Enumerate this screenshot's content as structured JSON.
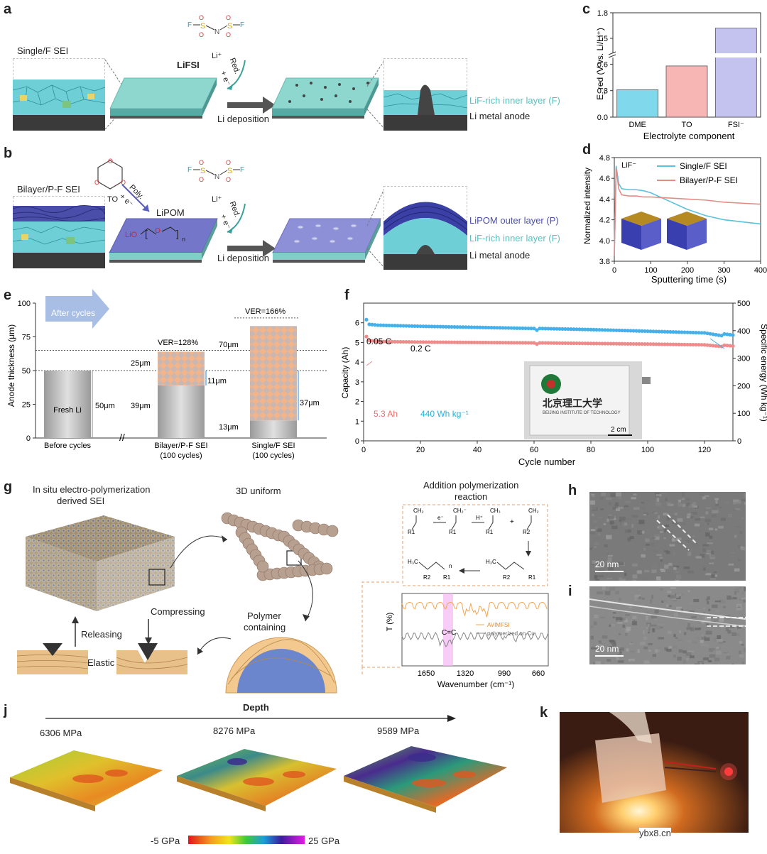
{
  "panel_letters": {
    "a": "a",
    "b": "b",
    "c": "c",
    "d": "d",
    "e": "e",
    "f": "f",
    "g": "g",
    "h": "h",
    "i": "i",
    "j": "j",
    "k": "k"
  },
  "panel_a": {
    "single_f_sei": "Single/F SEI",
    "lifsi": "LiFSI",
    "red": "Red.",
    "e_minus": "+ e⁻",
    "li_plus": "Li⁺",
    "li_deposition": "Li deposition",
    "lif_inner": "LiF-rich inner layer (F)",
    "li_metal": "Li metal anode"
  },
  "panel_b": {
    "bilayer": "Bilayer/P-F SEI",
    "to": "TO",
    "poly": "Poly.",
    "e_minus": "+ e⁻",
    "lipom": "LiPOM",
    "red": "Red.",
    "li_plus": "Li⁺",
    "li_deposition": "Li deposition",
    "lipom_outer": "LiPOM outer layer (P)",
    "lif_inner": "LiF-rich inner layer (F)",
    "li_metal": "Li metal anode"
  },
  "panel_c": {
    "ylabel": "E_red (V vs. Li/Li⁺)",
    "xlabel": "Electrolyte component",
    "yticks": [
      "0.0",
      "0.3",
      "0.6",
      "1.5",
      "1.8"
    ]
  },
  "panel_d": {
    "ylabel": "Normalized intensity",
    "xlabel": "Sputtering time (s)",
    "annot": "LiF⁻",
    "yticks": [
      "3.8",
      "4.0",
      "4.2",
      "4.4",
      "4.6",
      "4.8"
    ],
    "xticks": [
      "0",
      "100",
      "200",
      "300",
      "400"
    ]
  },
  "panel_e": {
    "ylabel": "Anode thickness (μm)",
    "after_cycles": "After cycles",
    "yticks": [
      "0",
      "25",
      "50",
      "75",
      "100"
    ],
    "fresh_li": "Fresh Li",
    "um50": "50μm",
    "ver128": "VER=128%",
    "um25": "25μm",
    "um11": "11μm",
    "um39": "39μm",
    "ver166": "VER=166%",
    "um70": "70μm",
    "um37": "37μm",
    "um13": "13μm",
    "cat1": "Before cycles",
    "cat2a": "Bilayer/P-F SEI",
    "cat2b": "(100 cycles)",
    "cat3a": "Single/F SEI",
    "cat3b": "(100 cycles)"
  },
  "panel_f": {
    "ylabel_left": "Capacity (Ah)",
    "ylabel_right": "Specific energy (Wh kg⁻¹)",
    "xlabel": "Cycle number",
    "rate1": "0.05 C",
    "rate2": "0.2 C",
    "cap_label": "5.3 Ah",
    "energy_label": "440 Wh kg⁻¹",
    "scalebar": "2 cm",
    "photo_text": "北京理工大学",
    "photo_sub": "BEIJING INSTITUTE OF TECHNOLOGY",
    "yticks_left": [
      "0",
      "1",
      "2",
      "3",
      "4",
      "5",
      "6"
    ],
    "yticks_right": [
      "0",
      "100",
      "200",
      "300",
      "400",
      "500"
    ],
    "xticks": [
      "0",
      "20",
      "40",
      "60",
      "80",
      "100",
      "120"
    ]
  },
  "panel_g": {
    "title1a": "In situ electro-polymerization",
    "title1b": "derived SEI",
    "title2": "3D uniform",
    "title3a": "Addition polymerization",
    "title3b": "reaction",
    "compressing": "Compressing",
    "releasing": "Releasing",
    "elastic": "Elastic",
    "polymer_a": "Polymer",
    "polymer_b": "containing",
    "t_label": "T (%)",
    "wavenumber": "Wavenumber (cm⁻¹)",
    "cc": "C=C",
    "avimfsi": "AVIMFSI",
    "polycu": "polymerized on Cu",
    "ir_ticks": [
      "1650",
      "1320",
      "990",
      "660"
    ],
    "chem": {
      "ch2a": "CH₂",
      "r1a": "R1",
      "em": "e⁻",
      "ch2b": "CH₂⁻",
      "r1b": "R1",
      "hp": "H⁺",
      "ch3": "CH₃",
      "r1c": "R1",
      "plus": "+",
      "ch2c": "CH₂",
      "r2a": "R2",
      "h3c1": "H₃C",
      "r2b": "R2",
      "r1d": "R1",
      "h3c2": "H₃C",
      "r2c": "R2",
      "r1e": "R1",
      "n": "n"
    }
  },
  "panel_h": {
    "scale": "20 nm"
  },
  "panel_i": {
    "scale": "20 nm"
  },
  "panel_j": {
    "depth": "Depth",
    "m1": "6306 MPa",
    "m2": "8276 MPa",
    "m3": "9589 MPa",
    "cmin": "-5 GPa",
    "cmax": "25 GPa"
  },
  "watermark": "ybx8.cn",
  "chart_data": [
    {
      "type": "bar",
      "title": "",
      "categories": [
        "DME",
        "TO",
        "FSI⁻"
      ],
      "values": [
        0.31,
        0.58,
        1.62
      ],
      "colors": [
        "#7fd8ec",
        "#f7b6b3",
        "#c4c2ee"
      ],
      "xlabel": "Electrolyte component",
      "ylabel": "E_red (V vs. Li/Li⁺)",
      "ylim": [
        0,
        1.8
      ],
      "axis_break": [
        0.7,
        1.3
      ]
    },
    {
      "type": "line",
      "xlabel": "Sputtering time (s)",
      "ylabel": "Normalized intensity",
      "xlim": [
        0,
        400
      ],
      "ylim": [
        3.8,
        4.8
      ],
      "legend_position": "top-right",
      "series": [
        {
          "name": "Single/F SEI",
          "color": "#5bc0d9",
          "x": [
            0,
            5,
            12,
            20,
            40,
            60,
            80,
            100,
            150,
            200,
            250,
            300,
            350,
            400
          ],
          "y": [
            3.85,
            4.72,
            4.55,
            4.5,
            4.49,
            4.49,
            4.48,
            4.46,
            4.38,
            4.3,
            4.24,
            4.2,
            4.18,
            4.16
          ]
        },
        {
          "name": "Bilayer/P-F SEI",
          "color": "#e58a86",
          "x": [
            0,
            5,
            12,
            20,
            40,
            60,
            80,
            100,
            150,
            200,
            250,
            300,
            350,
            400
          ],
          "y": [
            3.85,
            4.7,
            4.5,
            4.44,
            4.43,
            4.43,
            4.42,
            4.42,
            4.41,
            4.4,
            4.39,
            4.37,
            4.36,
            4.35
          ]
        }
      ]
    },
    {
      "type": "bar",
      "ylabel": "Anode thickness (μm)",
      "ylim": [
        0,
        100
      ],
      "categories": [
        "Before cycles",
        "Bilayer/P-F SEI (100 cycles)",
        "Single/F SEI (100 cycles)"
      ],
      "series": [
        {
          "name": "Li",
          "values": [
            50,
            39,
            13
          ]
        },
        {
          "name": "SEI/dead Li",
          "values": [
            0,
            25,
            70
          ]
        }
      ]
    },
    {
      "type": "scatter",
      "xlabel": "Cycle number",
      "xlim": [
        0,
        130
      ],
      "ylim_left": [
        0,
        7
      ],
      "ylim_right": [
        0,
        500
      ],
      "series": [
        {
          "name": "Specific energy",
          "axis": "right",
          "color": "#45b0ea",
          "x": [
            1,
            2,
            5,
            20,
            40,
            60,
            61,
            62,
            80,
            100,
            120,
            126,
            127,
            130
          ],
          "y": [
            440,
            423,
            420,
            416,
            412,
            408,
            402,
            408,
            404,
            398,
            392,
            382,
            388,
            384
          ]
        },
        {
          "name": "Capacity",
          "axis": "left",
          "color": "#ee8c8c",
          "x": [
            1,
            2,
            5,
            20,
            40,
            60,
            61,
            62,
            80,
            100,
            120,
            126,
            127,
            130
          ],
          "y": [
            5.3,
            5.1,
            5.05,
            5.02,
            5.0,
            4.98,
            4.92,
            4.98,
            4.95,
            4.92,
            4.88,
            4.8,
            4.86,
            4.82
          ]
        }
      ]
    }
  ]
}
